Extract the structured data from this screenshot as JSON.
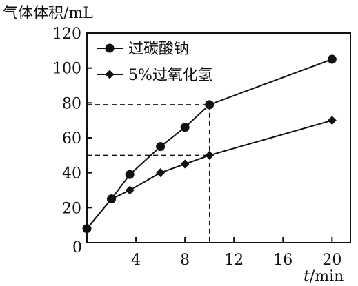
{
  "chart_data": {
    "type": "line",
    "ylabel": "气体体积/mL",
    "xlabel_var": "t",
    "xlabel_unit": "/min",
    "x_ticks": [
      0,
      4,
      8,
      12,
      16,
      20
    ],
    "y_ticks": [
      20,
      40,
      60,
      80,
      100,
      120
    ],
    "x_range": [
      0,
      21.5
    ],
    "y_range": [
      0,
      120
    ],
    "legend": "top-left",
    "grid": false,
    "series": [
      {
        "name": "过碳酸钠",
        "marker": "circle",
        "points": [
          {
            "x": 0,
            "y": 8
          },
          {
            "x": 2,
            "y": 25
          },
          {
            "x": 3.5,
            "y": 39
          },
          {
            "x": 6,
            "y": 55
          },
          {
            "x": 8,
            "y": 66
          },
          {
            "x": 10,
            "y": 79
          },
          {
            "x": 20,
            "y": 105
          }
        ]
      },
      {
        "name": "5%过氧化氢",
        "marker": "diamond",
        "points": [
          {
            "x": 0,
            "y": 8
          },
          {
            "x": 2,
            "y": 25
          },
          {
            "x": 3.5,
            "y": 30
          },
          {
            "x": 6,
            "y": 40
          },
          {
            "x": 8,
            "y": 45
          },
          {
            "x": 10,
            "y": 50
          },
          {
            "x": 20,
            "y": 70
          }
        ]
      }
    ],
    "reference_lines": [
      {
        "x": 10,
        "y": 79
      },
      {
        "x": 10,
        "y": 50
      }
    ]
  }
}
